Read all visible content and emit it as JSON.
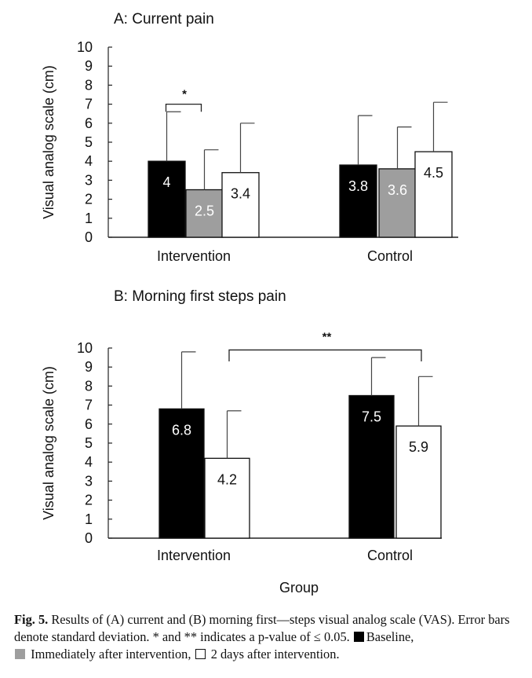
{
  "chart_data": [
    {
      "type": "bar",
      "title": "A: Current pain",
      "ylabel": "Visual analog scale (cm)",
      "xlabel": "",
      "ylim": [
        0,
        10
      ],
      "yticks": [
        0,
        1,
        2,
        3,
        4,
        5,
        6,
        7,
        8,
        9,
        10
      ],
      "categories": [
        "Intervention",
        "Control"
      ],
      "series": [
        {
          "name": "Baseline",
          "color": "#000000",
          "values": [
            4,
            3.8
          ],
          "errors": [
            2.6,
            2.6
          ],
          "labels": [
            "4",
            "3.8"
          ]
        },
        {
          "name": "Immediately after intervention",
          "color": "#9e9e9e",
          "values": [
            2.5,
            3.6
          ],
          "errors": [
            2.1,
            2.2
          ],
          "labels": [
            "2.5",
            "3.6"
          ]
        },
        {
          "name": "2 days after intervention",
          "color": "#ffffff",
          "values": [
            3.4,
            4.5
          ],
          "errors": [
            2.6,
            2.6
          ],
          "labels": [
            "3.4",
            "4.5"
          ]
        }
      ],
      "significance": [
        {
          "label": "*",
          "category": "Intervention",
          "from_series": 0,
          "to_series": 1
        }
      ]
    },
    {
      "type": "bar",
      "title": "B: Morning first steps pain",
      "ylabel": "Visual analog scale (cm)",
      "xlabel": "Group",
      "ylim": [
        0,
        10
      ],
      "yticks": [
        0,
        1,
        2,
        3,
        4,
        5,
        6,
        7,
        8,
        9,
        10
      ],
      "categories": [
        "Intervention",
        "Control"
      ],
      "series": [
        {
          "name": "Baseline",
          "color": "#000000",
          "values": [
            6.8,
            7.5
          ],
          "errors": [
            3.0,
            2.0
          ],
          "labels": [
            "6.8",
            "7.5"
          ]
        },
        {
          "name": "2 days after intervention",
          "color": "#ffffff",
          "values": [
            4.2,
            5.9
          ],
          "errors": [
            2.5,
            2.6
          ],
          "labels": [
            "4.2",
            "5.9"
          ]
        }
      ],
      "significance": [
        {
          "label": "**",
          "from": "Intervention",
          "to": "Control"
        }
      ]
    }
  ],
  "caption": {
    "fig_label": "Fig. 5.",
    "text_1": " Results of (A) current and (B) morning first—steps visual analog scale (VAS). Error bars denote standard deviation. * and ** indicates a p-value of ≤ 0.05.",
    "legend_baseline": "Baseline,",
    "legend_immediate": "Immediately after intervention,",
    "legend_two_days": "2 days after intervention."
  }
}
